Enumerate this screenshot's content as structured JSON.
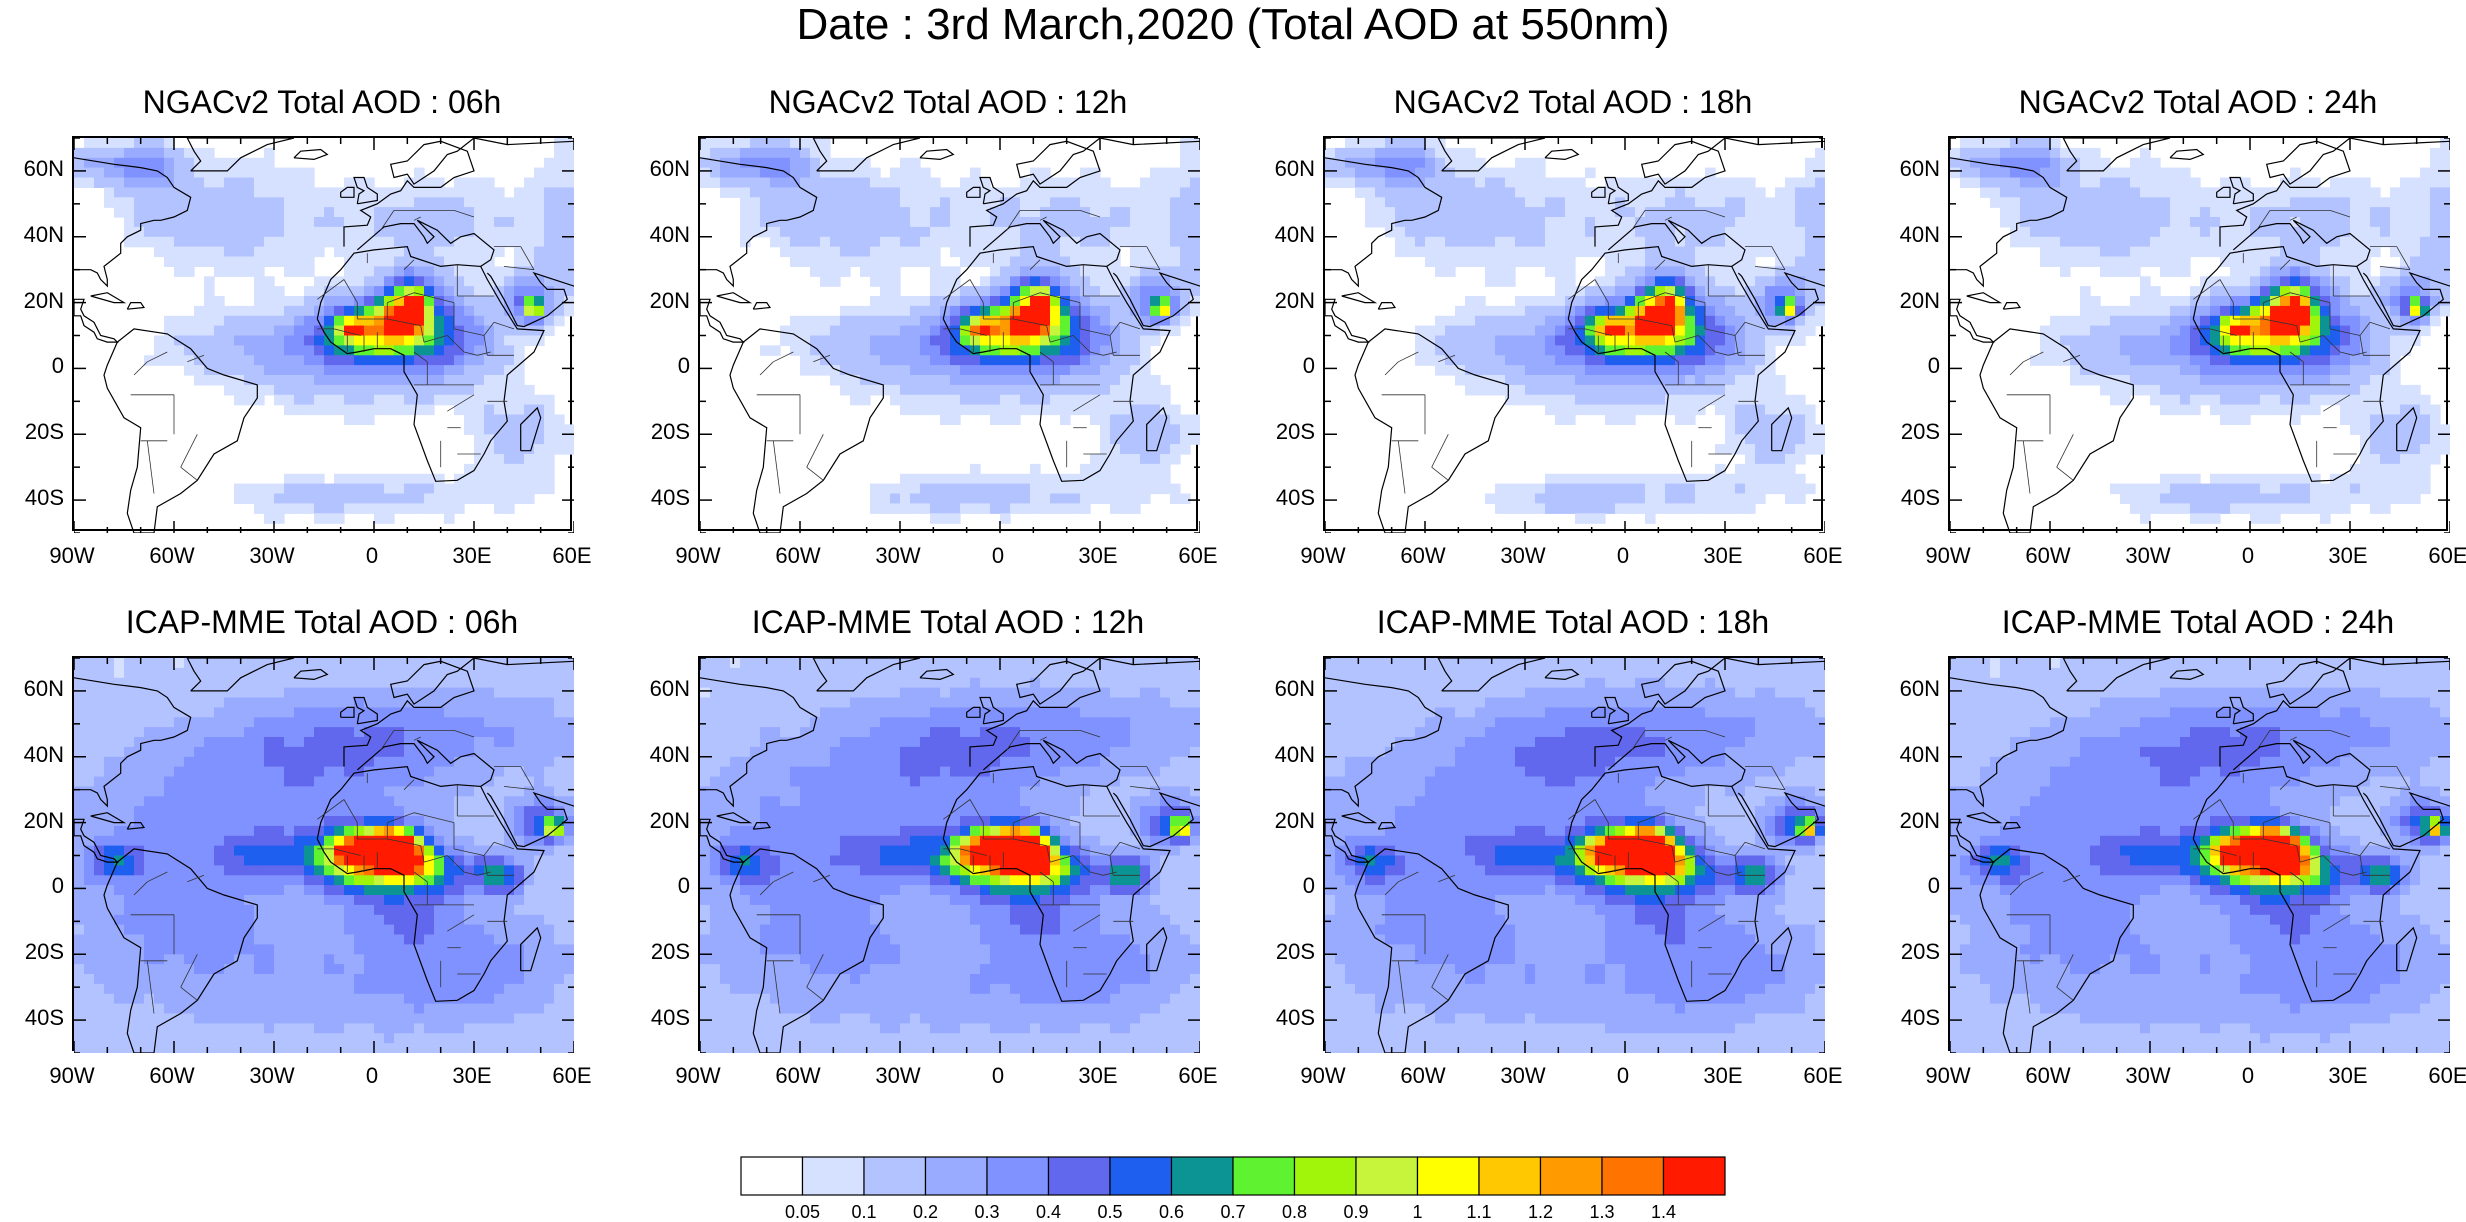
{
  "title": "Date : 3rd March,2020 (Total AOD at 550nm)",
  "panels": [
    {
      "title": "NGACv2 Total AOD : 06h",
      "model": "ngac",
      "hour": "06h"
    },
    {
      "title": "NGACv2 Total AOD : 12h",
      "model": "ngac",
      "hour": "12h"
    },
    {
      "title": "NGACv2 Total AOD : 18h",
      "model": "ngac",
      "hour": "18h"
    },
    {
      "title": "NGACv2 Total AOD : 24h",
      "model": "ngac",
      "hour": "24h"
    },
    {
      "title": "ICAP-MME Total AOD : 06h",
      "model": "icap",
      "hour": "06h"
    },
    {
      "title": "ICAP-MME Total AOD : 12h",
      "model": "icap",
      "hour": "12h"
    },
    {
      "title": "ICAP-MME Total AOD : 18h",
      "model": "icap",
      "hour": "18h"
    },
    {
      "title": "ICAP-MME Total AOD : 24h",
      "model": "icap",
      "hour": "24h"
    }
  ],
  "map": {
    "lon_range": [
      -90,
      60
    ],
    "lat_range": [
      -50,
      70
    ],
    "lon_ticks": [
      "90W",
      "60W",
      "30W",
      "0",
      "30E",
      "60E"
    ],
    "lat_ticks": [
      "60N",
      "40N",
      "20N",
      "0",
      "20S",
      "40S"
    ]
  },
  "colorbar": {
    "labels": [
      "0.05",
      "0.1",
      "0.2",
      "0.3",
      "0.4",
      "0.5",
      "0.6",
      "0.7",
      "0.8",
      "0.9",
      "1",
      "1.1",
      "1.2",
      "1.3",
      "1.4"
    ],
    "colors": [
      "#ffffff",
      "#d6e0ff",
      "#b3c3ff",
      "#99abff",
      "#8092ff",
      "#6168ee",
      "#1f5ff0",
      "#0c9494",
      "#5ff230",
      "#a0f50a",
      "#c7f53c",
      "#ffff00",
      "#ffc800",
      "#ff9a00",
      "#ff7300",
      "#ff1a00"
    ]
  }
}
